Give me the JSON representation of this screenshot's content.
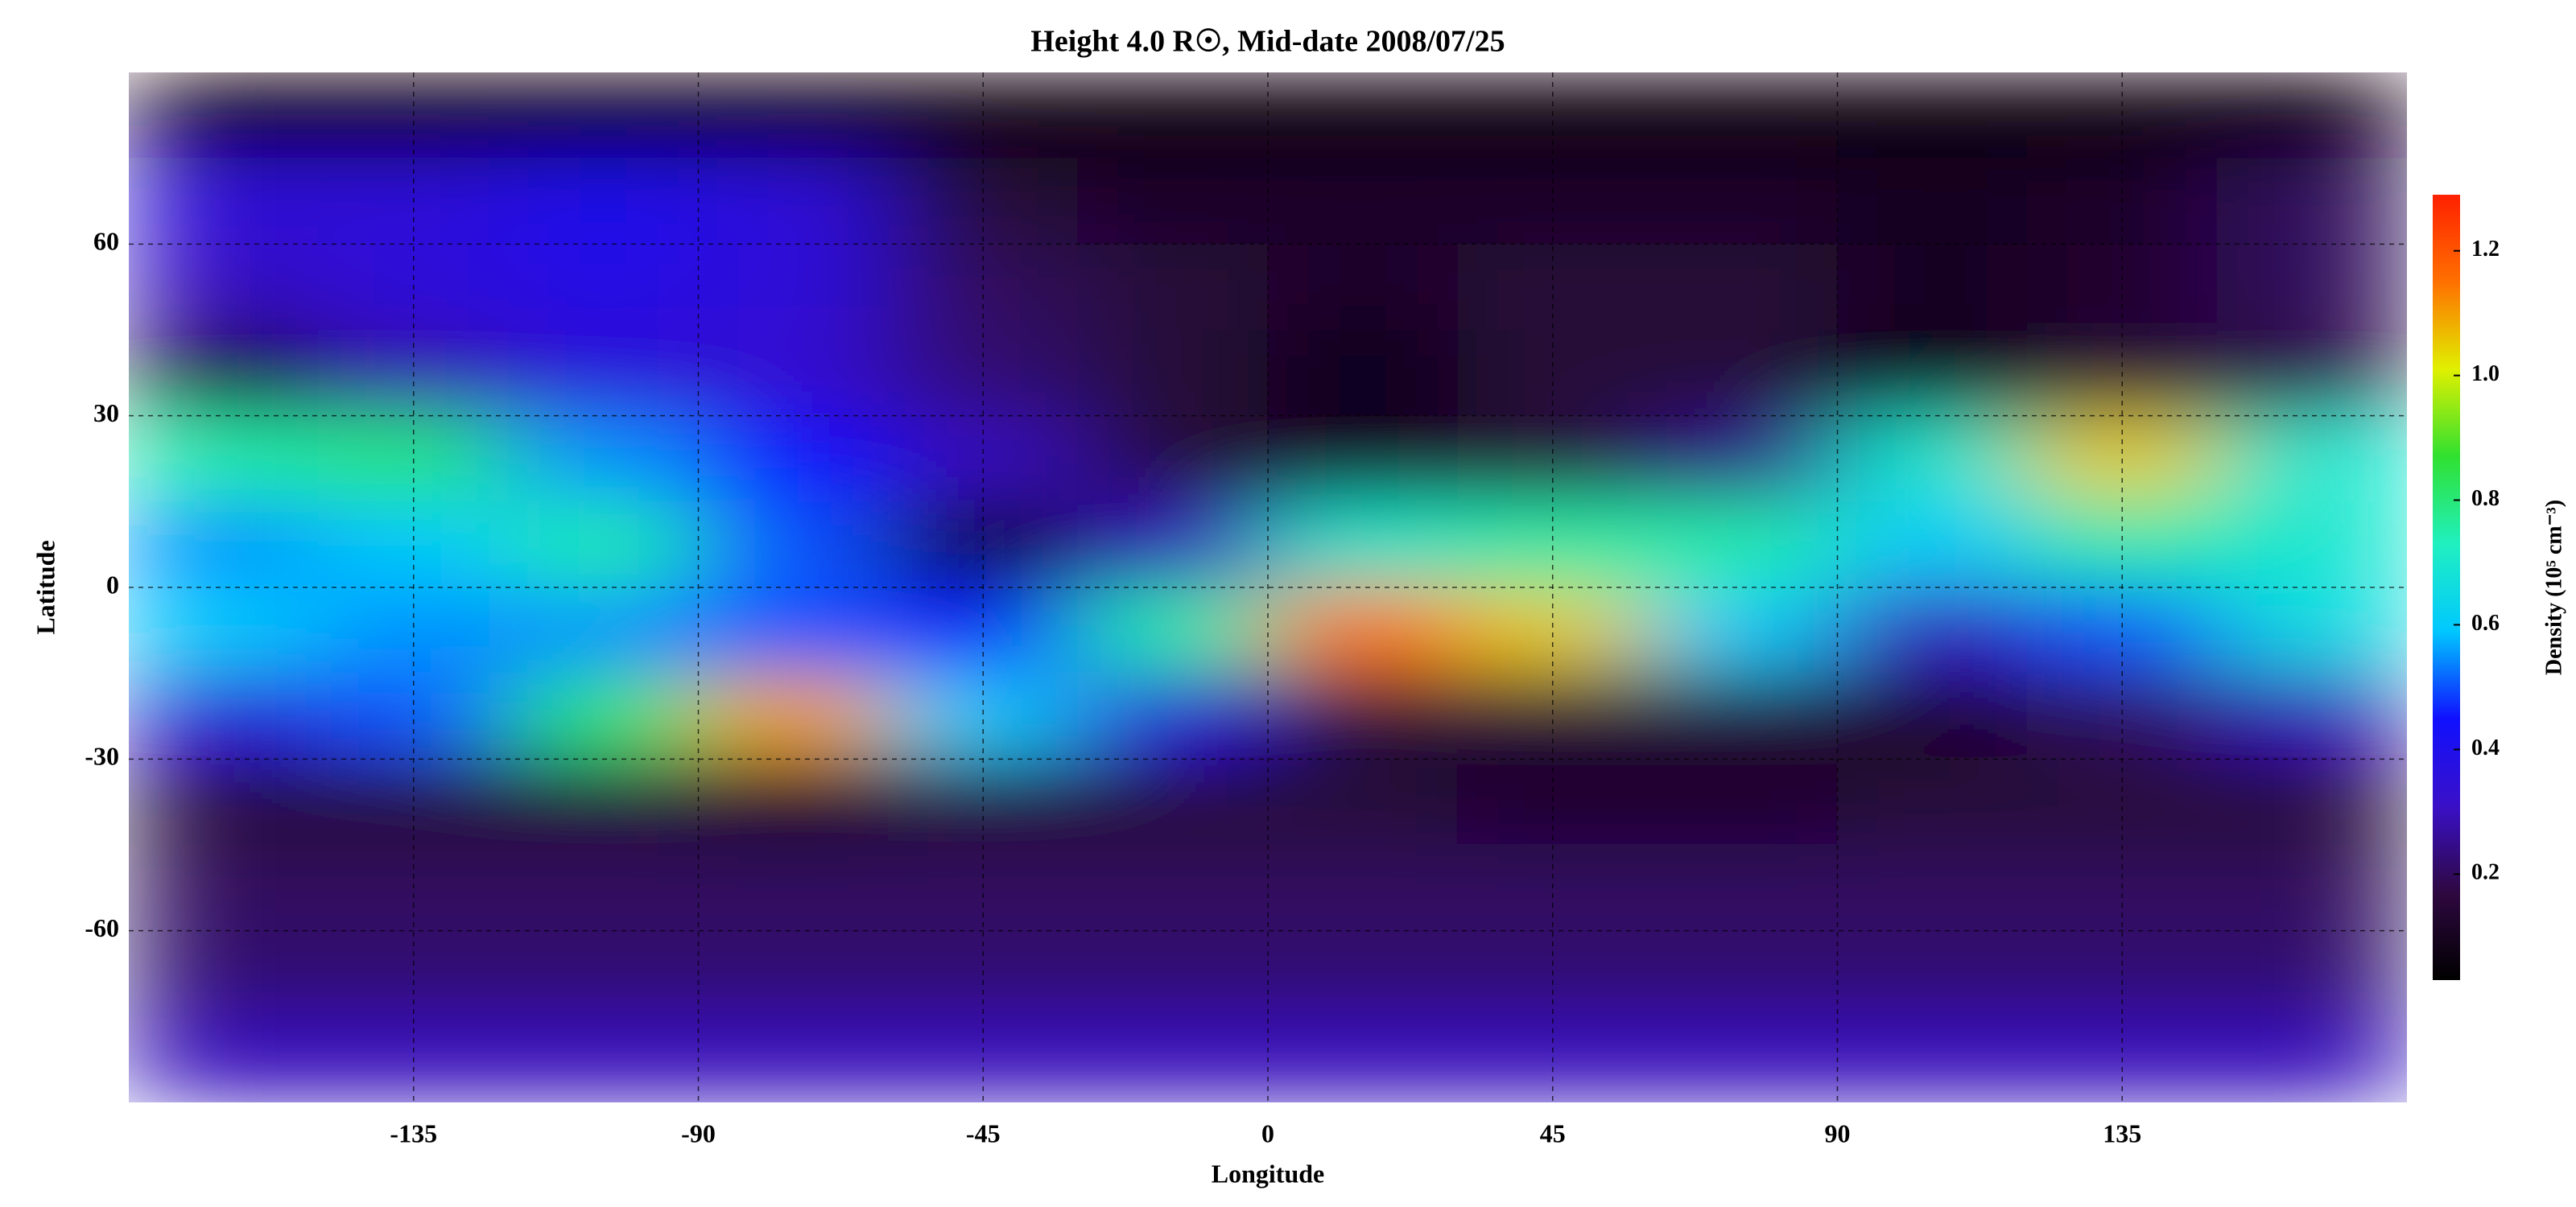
{
  "chart_data": {
    "type": "heatmap",
    "title": "Height 4.0 R☉, Mid-date 2008/07/25",
    "x_label": "Longitude",
    "y_label": "Latitude",
    "colorbar_label": "Density (10⁵ cm⁻³)",
    "xlim": [
      -180,
      180
    ],
    "ylim": [
      -90,
      90
    ],
    "xticks": [
      -135,
      -90,
      -45,
      0,
      45,
      90,
      135
    ],
    "yticks": [
      -60,
      -30,
      0,
      30,
      60
    ],
    "grid": true,
    "clim": [
      0.03,
      1.29
    ],
    "cticks": [
      0.2,
      0.4,
      0.6,
      0.8,
      {
        "value": 1,
        "label": "1.0"
      },
      1.2
    ],
    "colormap": [
      "#000000",
      "#2e0840",
      "#3a10c8",
      "#1010ff",
      "#00c8ff",
      "#20f0c0",
      "#30e030",
      "#e0f000",
      "#ff7000",
      "#ff2000"
    ],
    "x": [
      -165,
      -135,
      -105,
      -75,
      -45,
      -15,
      15,
      45,
      75,
      105,
      135,
      165
    ],
    "y": [
      82.5,
      67.5,
      52.5,
      37.5,
      22.5,
      7.5,
      -7.5,
      -22.5,
      -37.5,
      -52.5,
      -67.5,
      -82.5
    ],
    "z": [
      [
        0.06,
        0.06,
        0.06,
        0.05,
        0.05,
        0.05,
        0.05,
        0.05,
        0.05,
        0.05,
        0.05,
        0.06
      ],
      [
        0.35,
        0.35,
        0.4,
        0.35,
        0.15,
        0.12,
        0.12,
        0.12,
        0.12,
        0.1,
        0.12,
        0.2
      ],
      [
        0.3,
        0.35,
        0.38,
        0.35,
        0.2,
        0.15,
        0.12,
        0.15,
        0.15,
        0.1,
        0.13,
        0.2
      ],
      [
        0.12,
        0.28,
        0.35,
        0.33,
        0.22,
        0.15,
        0.08,
        0.15,
        0.15,
        0.08,
        0.15,
        0.18
      ],
      [
        0.75,
        0.8,
        0.55,
        0.45,
        0.3,
        0.15,
        0.1,
        0.15,
        0.25,
        0.7,
        1.05,
        0.7
      ],
      [
        0.55,
        0.6,
        0.75,
        0.5,
        0.08,
        0.3,
        0.7,
        0.75,
        0.75,
        0.6,
        0.75,
        0.7
      ],
      [
        0.6,
        0.55,
        0.55,
        0.5,
        0.45,
        0.75,
        1.15,
        1.05,
        0.6,
        0.3,
        0.5,
        0.65
      ],
      [
        0.35,
        0.5,
        0.8,
        1.1,
        0.6,
        0.35,
        0.15,
        0.15,
        0.15,
        0.12,
        0.2,
        0.3
      ],
      [
        0.15,
        0.15,
        0.15,
        0.12,
        0.15,
        0.15,
        0.15,
        0.12,
        0.12,
        0.15,
        0.15,
        0.15
      ],
      [
        0.2,
        0.2,
        0.2,
        0.2,
        0.2,
        0.2,
        0.2,
        0.2,
        0.2,
        0.2,
        0.2,
        0.2
      ],
      [
        0.22,
        0.22,
        0.22,
        0.22,
        0.22,
        0.22,
        0.22,
        0.22,
        0.22,
        0.22,
        0.22,
        0.22
      ],
      [
        0.3,
        0.3,
        0.3,
        0.3,
        0.3,
        0.3,
        0.3,
        0.3,
        0.3,
        0.3,
        0.3,
        0.3
      ]
    ]
  }
}
